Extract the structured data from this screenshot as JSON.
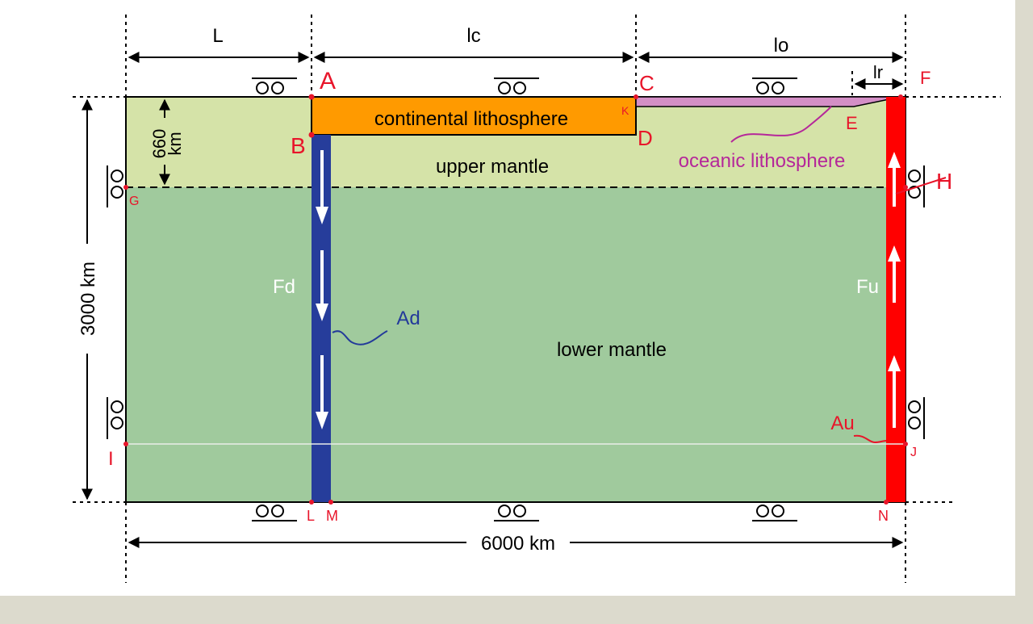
{
  "labels": {
    "dim_L": "L",
    "dim_lc": "lc",
    "dim_lo": "lo",
    "dim_lr": "lr",
    "upper_thickness_value": "660",
    "upper_thickness_unit": "km",
    "depth_total": "3000 km",
    "width_total": "6000 km",
    "continental_lithosphere": "continental lithosphere",
    "oceanic_lithosphere": "oceanic lithosphere",
    "upper_mantle": "upper mantle",
    "lower_mantle": "lower mantle",
    "force_down": "Fd",
    "force_up": "Fu",
    "area_down": "Ad",
    "area_up": "Au"
  },
  "points": {
    "A": "A",
    "B": "B",
    "C": "C",
    "D": "D",
    "E": "E",
    "F": "F",
    "G": "G",
    "H": "H",
    "I": "I",
    "J": "J",
    "K": "K",
    "L": "L",
    "M": "M",
    "N": "N"
  },
  "colors": {
    "background": "#dcdacd",
    "canvas": "#ffffff",
    "upper_mantle": "#d5e3a8",
    "lower_mantle": "#a0ca9d",
    "continental": "#ff9a00",
    "oceanic": "#d48fc6",
    "downwelling": "#263d9b",
    "upwelling": "#ff0000",
    "oceanic_label": "#b5279a",
    "point_label": "#e8152a",
    "ad_label": "#233a9a",
    "au_label": "#e8152a"
  }
}
